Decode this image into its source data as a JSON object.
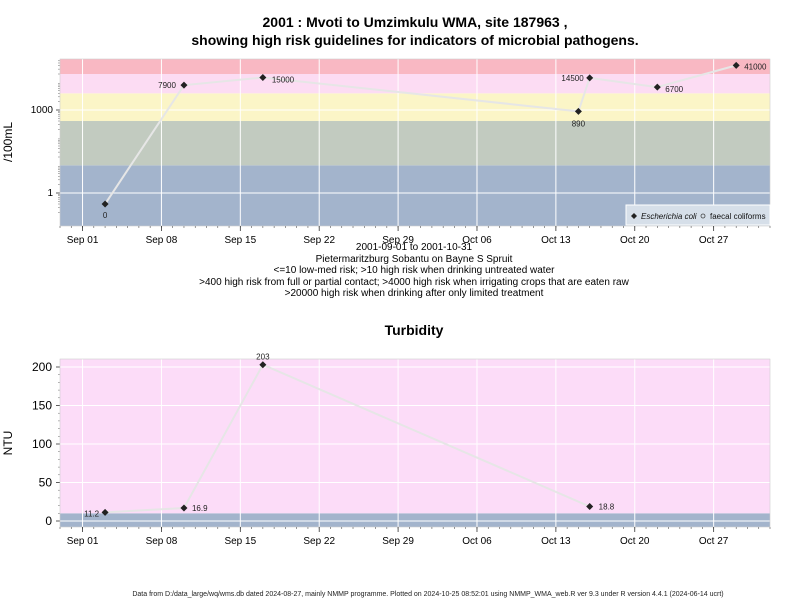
{
  "chart_data": [
    {
      "type": "line",
      "title_line1": "2001 : Mvoti to Umzimkulu WMA, site 187963 ,",
      "title_line2": "showing high risk guidelines for indicators of microbial pathogens.",
      "ylabel": "/100mL",
      "yscale": "log",
      "y_tick_labels": [
        "1",
        "1000"
      ],
      "x_tick_labels": [
        "Sep 01",
        "Sep 08",
        "Sep 15",
        "Sep 22",
        "Sep 29",
        "Oct 06",
        "Oct 13",
        "Oct 20",
        "Oct 27"
      ],
      "xlim": [
        "2001-08-30",
        "2001-11-01"
      ],
      "risk_bands": [
        {
          "upper": 10,
          "color": "#a3b4cc"
        },
        {
          "upper": 400,
          "color": "#c2cbc0"
        },
        {
          "upper": 4000,
          "color": "#fbf5c7"
        },
        {
          "upper": 20000,
          "color": "#fcdcf3"
        },
        {
          "upper": null,
          "color": "#f9b8c3"
        }
      ],
      "series": [
        {
          "name": "Escherichia coli",
          "marker": "filled-diamond",
          "points": [
            {
              "date": "2001-09-03",
              "value": 0.4,
              "label": "0"
            },
            {
              "date": "2001-09-10",
              "value": 7900,
              "label": "7900"
            },
            {
              "date": "2001-09-17",
              "value": 15000,
              "label": "15000"
            },
            {
              "date": "2001-10-15",
              "value": 890,
              "label": "890"
            },
            {
              "date": "2001-10-16",
              "value": 14500,
              "label": "14500"
            },
            {
              "date": "2001-10-22",
              "value": 6700,
              "label": "6700"
            },
            {
              "date": "2001-10-29",
              "value": 41000,
              "label": "41000"
            }
          ]
        },
        {
          "name": "faecal coliforms",
          "marker": "open-circle",
          "points": []
        }
      ],
      "legend_position": "bottom-right",
      "subtitle_lines": [
        "2001-09-01 to 2001-10-31",
        "Pietermaritzburg Sobantu on Bayne S Spruit",
        "<=10 low-med risk; >10 high risk when drinking untreated water",
        ">400 high risk from full or partial contact; >4000 high risk when irrigating crops that are eaten raw",
        ">20000 high risk when drinking after only limited treatment"
      ],
      "colors": {
        "line": "#e6e6e6",
        "marker": "#222222",
        "grid": "#ffffff"
      }
    },
    {
      "type": "line",
      "title": "Turbidity",
      "ylabel": "NTU",
      "ylim": [
        -7,
        210
      ],
      "y_ticks": [
        0,
        50,
        100,
        150,
        200
      ],
      "x_tick_labels": [
        "Sep 01",
        "Sep 08",
        "Sep 15",
        "Sep 22",
        "Sep 29",
        "Oct 06",
        "Oct 13",
        "Oct 20",
        "Oct 27"
      ],
      "xlim": [
        "2001-08-30",
        "2001-11-01"
      ],
      "bands": [
        {
          "upper": 10,
          "color": "#a3b4cc"
        },
        {
          "upper": null,
          "color": "#fcdcf8"
        }
      ],
      "series": [
        {
          "name": "Turbidity",
          "points": [
            {
              "date": "2001-09-03",
              "value": 11.2,
              "label": "11.2"
            },
            {
              "date": "2001-09-10",
              "value": 16.9,
              "label": "16.9"
            },
            {
              "date": "2001-09-17",
              "value": 203,
              "label": "203"
            },
            {
              "date": "2001-10-16",
              "value": 18.8,
              "label": "18.8"
            }
          ]
        }
      ]
    }
  ],
  "footer": "Data from D:/data_large/wq/wms.db dated 2024-08-27, mainly NMMP programme. Plotted on 2024-10-25 08:52:01 using NMMP_WMA_web.R ver 9.3 under R version 4.4.1 (2024-06-14 ucrt)"
}
